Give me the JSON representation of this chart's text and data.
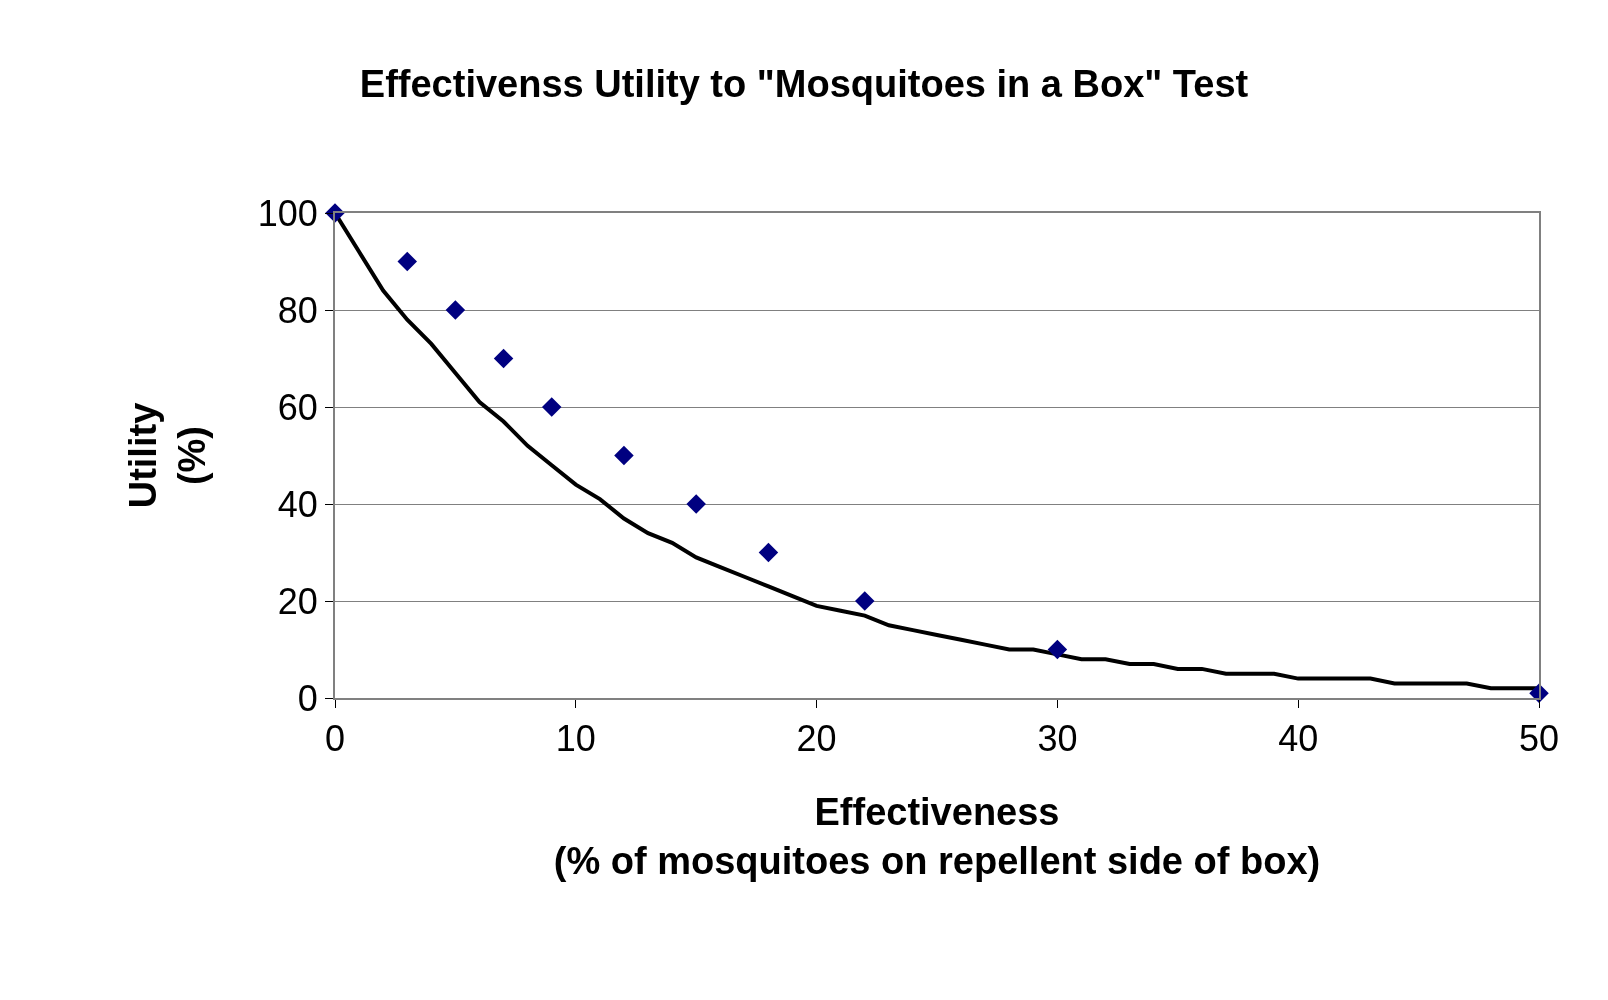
{
  "chart_data": {
    "type": "scatter",
    "title": "Effectivenss Utility to \"Mosquitoes in a Box\" Test",
    "xlabel": "Effectiveness\n(% of mosquitoes on repellent side of box)",
    "ylabel": "Utility\n(%)",
    "xlim": [
      0,
      50
    ],
    "xticks": [
      0,
      10,
      20,
      30,
      40,
      50
    ],
    "ylim": [
      0,
      100
    ],
    "yticks": [
      0,
      20,
      40,
      60,
      80,
      100
    ],
    "grid": "y",
    "marker": "diamond",
    "series": [
      {
        "type": "line",
        "marker": "none",
        "color": "#000000",
        "x": [
          0,
          1,
          2,
          3,
          4,
          5,
          6,
          7,
          8,
          9,
          10,
          11,
          12,
          13,
          14,
          15,
          16,
          17,
          18,
          19,
          20,
          21,
          22,
          23,
          24,
          25,
          26,
          27,
          28,
          29,
          30,
          31,
          32,
          33,
          34,
          35,
          36,
          37,
          38,
          39,
          40,
          41,
          42,
          43,
          44,
          45,
          46,
          47,
          48,
          49,
          50
        ],
        "values": [
          100,
          92,
          84,
          78,
          73,
          67,
          61,
          57,
          52,
          48,
          44,
          41,
          37,
          34,
          32,
          29,
          27,
          25,
          23,
          21,
          19,
          18,
          17,
          15,
          14,
          13,
          12,
          11,
          10,
          10,
          9,
          8,
          8,
          7,
          7,
          6,
          6,
          5,
          5,
          5,
          4,
          4,
          4,
          4,
          3,
          3,
          3,
          3,
          2,
          2,
          2
        ]
      },
      {
        "color": "#000080",
        "x": [
          0,
          3,
          5,
          7,
          9,
          12,
          15,
          18,
          22,
          30,
          50
        ],
        "values": [
          100,
          90,
          80,
          70,
          60,
          50,
          40,
          30,
          20,
          10,
          1
        ]
      }
    ]
  }
}
